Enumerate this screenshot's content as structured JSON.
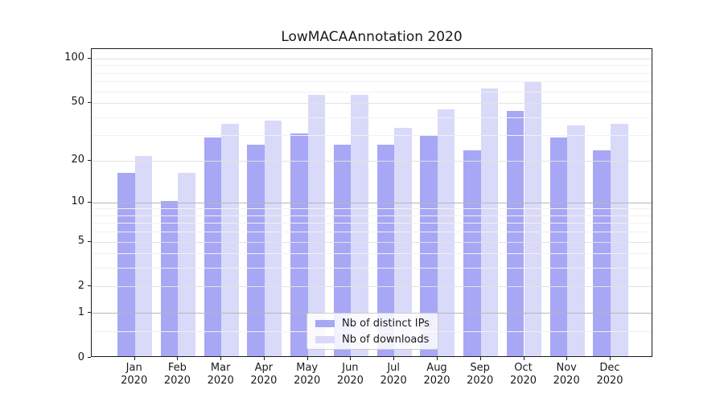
{
  "title": "LowMACAAnnotation 2020",
  "colors": {
    "bar_distinct_ips": "#a7a7f5",
    "bar_downloads": "#d9d9f9",
    "axis_frame": "#1c1c1c",
    "grid_major": "#b6b6b6",
    "grid_mid": "#e2e2e2",
    "grid_minor": "#f1f1f1",
    "legend_border": "#cccccc",
    "text": "#1a1a1a"
  },
  "chart_data": {
    "type": "bar",
    "title": "LowMACAAnnotation 2020",
    "categories": [
      "Jan 2020",
      "Feb 2020",
      "Mar 2020",
      "Apr 2020",
      "May 2020",
      "Jun 2020",
      "Jul 2020",
      "Aug 2020",
      "Sep 2020",
      "Oct 2020",
      "Nov 2020",
      "Dec 2020"
    ],
    "series": [
      {
        "name": "Nb of distinct IPs",
        "color": "#a7a7f5",
        "values": [
          16,
          10,
          28,
          25,
          30,
          25,
          25,
          29,
          23,
          43,
          28,
          23
        ]
      },
      {
        "name": "Nb of downloads",
        "color": "#d9d9f9",
        "values": [
          21,
          16,
          35,
          37,
          55,
          55,
          33,
          44,
          61,
          68,
          34,
          35
        ]
      }
    ],
    "xlabel": "",
    "ylabel": "",
    "yscale": "log1p",
    "ylim": [
      0,
      101
    ],
    "yticks": [
      0,
      1,
      2,
      5,
      10,
      20,
      50,
      100
    ],
    "yticks_major": [
      1,
      10
    ],
    "yticks_minor": [
      0.5,
      3,
      4,
      6,
      7,
      8,
      9,
      30,
      40,
      60,
      70,
      80,
      90
    ],
    "grid": true,
    "legend_position": "lower center"
  }
}
